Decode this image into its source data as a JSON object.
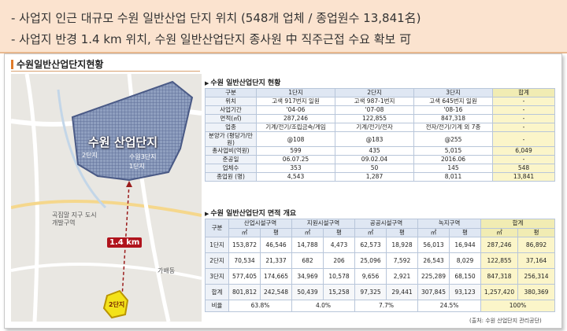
{
  "header": {
    "line1": "- 사업지 인근 대규모 수원 일반산업 단지 위치 (548개 업체 / 종업원수 13,841名)",
    "line2": "- 사업지 반경 1.4 km 위치, 수원 일반산업단지 종사원 中 직주근접 수요 확보 可"
  },
  "section_title": "수원일반산업단지현황",
  "map": {
    "title": "수원 산업단지",
    "distance": "1.4 km",
    "labels": {
      "block3": "수원3단지",
      "block1": "1단지",
      "block2": "2단지",
      "district": "곡집말 지구 도시개발구역",
      "neighborhood": "가배동",
      "site": "2단지"
    }
  },
  "table1": {
    "title": "수원 일반산업단지 현황",
    "headers": [
      "구분",
      "1단지",
      "2단지",
      "3단지",
      "합계"
    ],
    "rows": [
      [
        "위치",
        "고색 917번지 일원",
        "고색 987-1번지",
        "고색 645번지 일원",
        "-"
      ],
      [
        "사업기간",
        "'04-06",
        "'07-08",
        "'08-16",
        "-"
      ],
      [
        "면적(㎡)",
        "287,246",
        "122,855",
        "847,318",
        "-"
      ],
      [
        "업종",
        "기계/전기/조립금속/게임",
        "기계/전기/전자",
        "전자/전기/기계 외 7종",
        "-"
      ],
      [
        "분양가 (평당가/만원)",
        "@108",
        "@183",
        "@255",
        "-"
      ],
      [
        "총사업비(억원)",
        "599",
        "435",
        "5,015",
        "6,049"
      ],
      [
        "준공일",
        "06.07.25",
        "09.02.04",
        "2016.06",
        "-"
      ],
      [
        "업체수",
        "353",
        "50",
        "145",
        "548"
      ],
      [
        "종업원 (명)",
        "4,543",
        "1,287",
        "8,011",
        "13,841"
      ]
    ]
  },
  "table2": {
    "title": "수원 일반산업단지 면적 개요",
    "head_label": "구분",
    "groups": [
      "산업시설구역",
      "지원시설구역",
      "공공시설구역",
      "녹지구역",
      "합계"
    ],
    "units": [
      "㎡",
      "평"
    ],
    "rows": [
      [
        "1단지",
        "153,872",
        "46,546",
        "14,788",
        "4,473",
        "62,573",
        "18,928",
        "56,013",
        "16,944",
        "287,246",
        "86,892"
      ],
      [
        "2단지",
        "70,534",
        "21,337",
        "682",
        "206",
        "25,096",
        "7,592",
        "26,543",
        "8,029",
        "122,855",
        "37,164"
      ],
      [
        "3단지",
        "577,405",
        "174,665",
        "34,969",
        "10,578",
        "9,656",
        "2,921",
        "225,289",
        "68,150",
        "847,318",
        "256,314"
      ],
      [
        "합계",
        "801,812",
        "242,548",
        "50,439",
        "15,258",
        "97,325",
        "29,441",
        "307,845",
        "93,123",
        "1,257,420",
        "380,369"
      ]
    ],
    "ratio": [
      "비율",
      "63.8%",
      "4.0%",
      "7.7%",
      "24.5%",
      "100%"
    ]
  },
  "source": "(출처: 수원 산업단지 관리공단)"
}
